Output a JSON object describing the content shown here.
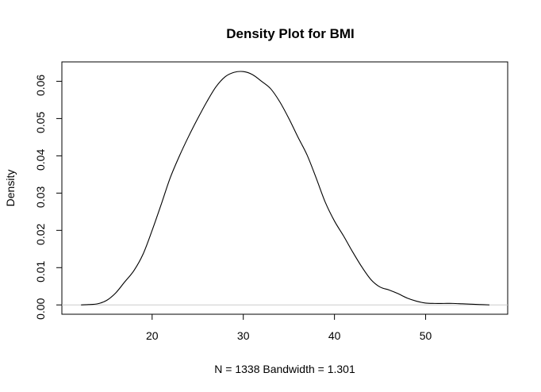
{
  "chart_data": {
    "type": "line",
    "title": "Density Plot for BMI",
    "xlabel": "N = 1338   Bandwidth = 1.301",
    "ylabel": "Density",
    "xlim": [
      10.1,
      59.0
    ],
    "ylim": [
      -0.0025,
      0.0652
    ],
    "x_ticks": [
      20,
      30,
      40,
      50
    ],
    "y_ticks": [
      0.0,
      0.01,
      0.02,
      0.03,
      0.04,
      0.05,
      0.06
    ],
    "x_tick_labels": [
      "20",
      "30",
      "40",
      "50"
    ],
    "y_tick_labels": [
      "0.00",
      "0.01",
      "0.02",
      "0.03",
      "0.04",
      "0.05",
      "0.06"
    ],
    "baseline": 0,
    "grid": false,
    "series": [
      {
        "x": [
          12.2,
          13.0,
          14.0,
          15.0,
          16.0,
          17.0,
          18.0,
          19.0,
          20.0,
          21.0,
          22.0,
          23.0,
          24.0,
          25.0,
          26.0,
          27.0,
          28.0,
          29.0,
          30.0,
          31.0,
          32.0,
          33.0,
          34.0,
          35.0,
          36.0,
          37.0,
          38.0,
          39.0,
          40.0,
          41.0,
          42.0,
          43.0,
          44.0,
          45.0,
          46.0,
          47.0,
          48.0,
          49.0,
          50.0,
          51.0,
          52.0,
          53.0,
          54.0,
          55.0,
          56.0,
          57.0
        ],
        "y": [
          0.0,
          0.0001,
          0.0003,
          0.0012,
          0.0032,
          0.0062,
          0.0092,
          0.0136,
          0.02,
          0.027,
          0.0342,
          0.04,
          0.0452,
          0.05,
          0.0545,
          0.0585,
          0.0612,
          0.0624,
          0.0626,
          0.0618,
          0.06,
          0.058,
          0.0545,
          0.05,
          0.045,
          0.0402,
          0.034,
          0.0275,
          0.0225,
          0.0185,
          0.0142,
          0.0102,
          0.0068,
          0.0048,
          0.004,
          0.003,
          0.0018,
          0.001,
          0.0005,
          0.0004,
          0.0004,
          0.0004,
          0.0003,
          0.0002,
          0.0001,
          0.0
        ]
      }
    ]
  }
}
